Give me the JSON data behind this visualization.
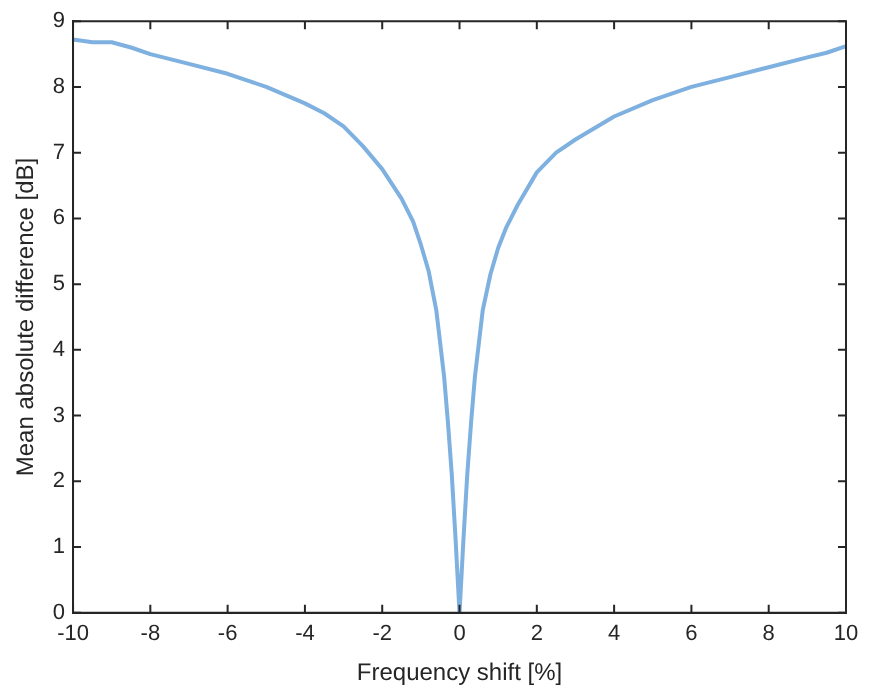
{
  "chart_data": {
    "type": "line",
    "xlabel": "Frequency shift [%]",
    "ylabel": "Mean absolute difference [dB]",
    "xlim": [
      -10,
      10
    ],
    "xticks": [
      -10,
      -8,
      -6,
      -4,
      -2,
      0,
      2,
      4,
      6,
      8,
      10
    ],
    "ylim": [
      0,
      9
    ],
    "yticks": [
      0,
      1,
      2,
      3,
      4,
      5,
      6,
      7,
      8,
      9
    ],
    "grid": false,
    "legend": false,
    "marker": "none",
    "line_style": "solid",
    "series": [
      {
        "color": "#7eb0e0",
        "x": [
          -10,
          -9.5,
          -9,
          -8.5,
          -8,
          -7,
          -6,
          -5,
          -4,
          -3.5,
          -3,
          -2.5,
          -2,
          -1.5,
          -1.2,
          -1,
          -0.8,
          -0.6,
          -0.5,
          -0.4,
          -0.3,
          -0.2,
          -0.1,
          0,
          0.1,
          0.2,
          0.3,
          0.4,
          0.5,
          0.6,
          0.8,
          1,
          1.2,
          1.5,
          2,
          2.5,
          3,
          4,
          5,
          6,
          7,
          8,
          9,
          9.5,
          10
        ],
        "values": [
          8.72,
          8.68,
          8.68,
          8.6,
          8.5,
          8.35,
          8.2,
          8.0,
          7.75,
          7.6,
          7.4,
          7.1,
          6.75,
          6.3,
          5.95,
          5.6,
          5.2,
          4.6,
          4.1,
          3.6,
          2.9,
          2.1,
          1.1,
          0,
          1.1,
          2.1,
          2.9,
          3.6,
          4.1,
          4.6,
          5.15,
          5.55,
          5.85,
          6.2,
          6.7,
          7.0,
          7.2,
          7.55,
          7.8,
          8.0,
          8.15,
          8.3,
          8.45,
          8.52,
          8.62
        ]
      }
    ]
  }
}
